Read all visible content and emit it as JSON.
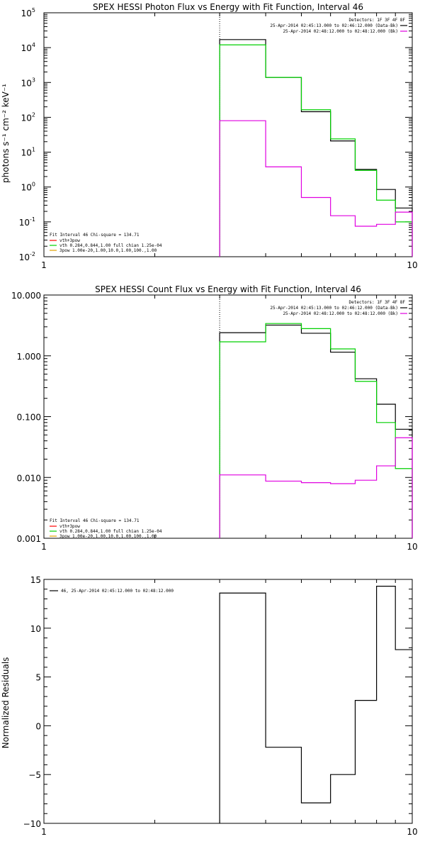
{
  "colors": {
    "black": "#000000",
    "green": "#00d000",
    "magenta": "#e000e0",
    "red": "#ff0000",
    "orange": "#e0a000"
  },
  "chart_data": [
    {
      "type": "line",
      "title": "SPEX HESSI Photon Flux vs Energy with Fit Function, Interval 46",
      "ylabel": "photons s⁻¹ cm⁻² keV⁻¹",
      "xscale": "log",
      "yscale": "log",
      "xlim": [
        1,
        10
      ],
      "ylim": [
        0.01,
        100000
      ],
      "xticks": [
        "1",
        "10"
      ],
      "yticks": [
        {
          "base": "10",
          "exp": "-2"
        },
        {
          "base": "10",
          "exp": "-1"
        },
        {
          "base": "10",
          "exp": "0"
        },
        {
          "base": "10",
          "exp": "1"
        },
        {
          "base": "10",
          "exp": "2"
        },
        {
          "base": "10",
          "exp": "3"
        },
        {
          "base": "10",
          "exp": "4"
        },
        {
          "base": "10",
          "exp": "5"
        }
      ],
      "vline_x": 3.0,
      "legend_top": [
        "Detectors: 1F 3F 4F 8F",
        "25-Apr-2014 02:45:13.000 to 02:46:12.000 (Data-Bk)",
        "25-Apr-2014 02:48:12.000 to 02:48:12.000 (Bk)"
      ],
      "legend_bottom": [
        "Fit Interval 46   Chi-square = 134.71",
        "vth+3pow",
        "vth 0.284,0.844,1.00  full chian 1.25e-04",
        "3pow 1.00e-20,1.00,10.0,1.00,100.,1.00"
      ],
      "edges": [
        3.0,
        4.0,
        5.0,
        6.0,
        7.0,
        8.0,
        9.0,
        10.0
      ],
      "series": [
        {
          "name": "25-Apr-2014 02:45:13.000 to 02:46:12.000 (Data-Bk)",
          "color": "#000000",
          "values": [
            17000,
            1400,
            145,
            21,
            3.2,
            0.85,
            0.25
          ]
        },
        {
          "name": "vth+3pow",
          "color": "#00d000",
          "values": [
            12000,
            1400,
            165,
            24,
            3.0,
            0.42,
            0.1
          ]
        },
        {
          "name": "25-Apr-2014 02:48:12.000 to 02:48:12.000 (Bk)",
          "color": "#e000e0",
          "values": [
            80,
            3.8,
            0.5,
            0.15,
            0.075,
            0.085,
            0.19
          ]
        }
      ]
    },
    {
      "type": "line",
      "title": "SPEX HESSI Count Flux vs Energy with Fit Function, Interval 46",
      "xscale": "log",
      "yscale": "log",
      "xlim": [
        1,
        10
      ],
      "ylim": [
        0.001,
        10
      ],
      "xticks": [
        "1",
        "10"
      ],
      "yticks": [
        "0.001",
        "0.010",
        "0.100",
        "1.000",
        "10.000"
      ],
      "vline_x": 3.0,
      "legend_top": [
        "Detectors: 1F 3F 4F 8F",
        "25-Apr-2014 02:45:13.000 to 02:46:12.000 (Data-Bk)",
        "25-Apr-2014 02:48:12.000 to 02:48:12.000 (Bk)"
      ],
      "legend_bottom": [
        "Fit Interval 46   Chi-square = 134.71",
        "vth+3pow",
        "vth 0.284,0.844,1.00  full chian 1.25e-04",
        "3pow 1.00e-20,1.00,10.0,1.00,100.,1.00"
      ],
      "edges": [
        3.0,
        4.0,
        5.0,
        6.0,
        7.0,
        8.0,
        9.0,
        10.0
      ],
      "series": [
        {
          "name": "25-Apr-2014 02:45:13.000 to 02:46:12.000 (Data-Bk)",
          "color": "#000000",
          "values": [
            2.4,
            3.2,
            2.35,
            1.15,
            0.42,
            0.16,
            0.062
          ]
        },
        {
          "name": "vth+3pow",
          "color": "#00d000",
          "values": [
            1.7,
            3.4,
            2.8,
            1.3,
            0.38,
            0.08,
            0.014
          ]
        },
        {
          "name": "25-Apr-2014 02:48:12.000 to 02:48:12.000 (Bk)",
          "color": "#e000e0",
          "values": [
            0.011,
            0.0087,
            0.0082,
            0.0079,
            0.009,
            0.0155,
            0.045
          ]
        }
      ]
    },
    {
      "type": "line",
      "ylabel": "Normalized Residuals",
      "xscale": "log",
      "yscale": "linear",
      "xlim": [
        1,
        10
      ],
      "ylim": [
        -10,
        15
      ],
      "xticks": [
        "1",
        "10"
      ],
      "yticks": [
        "−10",
        "−5",
        "0",
        "5",
        "10",
        "15"
      ],
      "ytick_values": [
        -10,
        -5,
        0,
        5,
        10,
        15
      ],
      "legend_top": [
        "46, 25-Apr-2014 02:45:12.000 to 02:48:12.000"
      ],
      "edges": [
        3.0,
        4.0,
        5.0,
        6.0,
        7.0,
        8.0,
        9.0,
        10.0
      ],
      "series": [
        {
          "name": "46, 25-Apr-2014 02:45:12.000 to 02:48:12.000",
          "color": "#000000",
          "values": [
            13.6,
            -2.2,
            -7.9,
            -5.0,
            2.6,
            14.3,
            7.8
          ]
        }
      ]
    }
  ]
}
